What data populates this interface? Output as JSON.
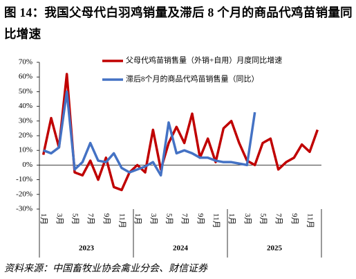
{
  "chart_data": {
    "type": "line",
    "title": "图 14：我国父母代白羽鸡销量及滞后 8 个月的商品代鸡苗销量同比增速",
    "source": "资料来源：中国畜牧业协会禽业分会、财信证券",
    "categories": [
      "1月",
      null,
      "3月",
      null,
      "5月",
      null,
      "7月",
      null,
      "9月",
      null,
      "11月",
      null,
      "1月",
      null,
      "3月",
      null,
      "5月",
      null,
      "7月",
      null,
      "9月",
      null,
      "11月",
      null,
      "1月",
      null,
      "3月",
      null,
      "5月",
      null,
      "7月",
      null,
      "9月",
      null,
      "11月",
      null
    ],
    "groups": [
      "2023",
      "2024",
      "2025"
    ],
    "series": [
      {
        "name": "父母代鸡苗销售量（外销+自用）月度同比增速",
        "color": "#c00000",
        "values": [
          7,
          32,
          12,
          62,
          -5,
          -7,
          3,
          -10,
          5,
          -15,
          -17,
          -5,
          0,
          -5,
          24,
          -3,
          15,
          26,
          15,
          35,
          5,
          18,
          2,
          25,
          30,
          15,
          3,
          0,
          15,
          18,
          -3,
          2,
          5,
          14,
          9,
          24
        ]
      },
      {
        "name": "滞后8个月的商品代鸡苗销售量（同比）",
        "color": "#4472c4",
        "values": [
          10,
          8,
          12,
          50,
          -3,
          2,
          15,
          3,
          2,
          8,
          -2,
          -5,
          -3,
          -1,
          2,
          -7,
          29,
          8,
          10,
          8,
          5,
          5,
          3,
          2,
          2,
          1,
          0,
          36,
          null,
          null,
          null,
          null,
          null,
          null,
          null,
          null
        ]
      }
    ],
    "ylim": [
      -30,
      70
    ],
    "yticks": [
      {
        "value": -30,
        "label": "-30%"
      },
      {
        "value": -20,
        "label": "-20%"
      },
      {
        "value": -10,
        "label": "-10%"
      },
      {
        "value": 0,
        "label": "0%"
      },
      {
        "value": 10,
        "label": "10%"
      },
      {
        "value": 20,
        "label": "20%"
      },
      {
        "value": 30,
        "label": "30%"
      },
      {
        "value": 40,
        "label": "40%"
      },
      {
        "value": 50,
        "label": "50%"
      },
      {
        "value": 60,
        "label": "60%"
      },
      {
        "value": 70,
        "label": "70%"
      }
    ],
    "grid": false,
    "legend": "top-right"
  }
}
